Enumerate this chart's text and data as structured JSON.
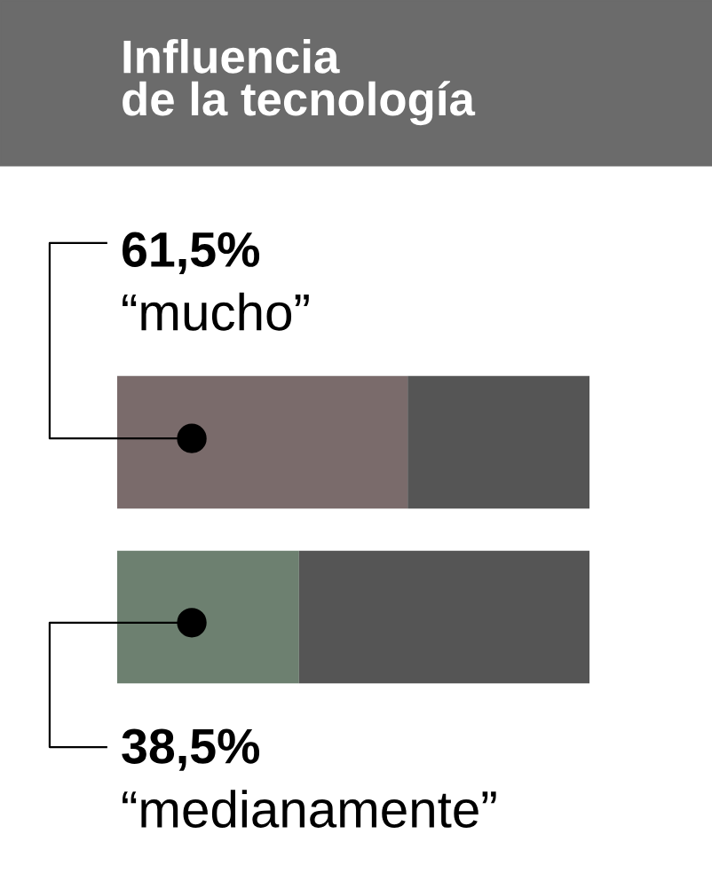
{
  "chart_data": {
    "type": "bar",
    "orientation": "horizontal",
    "stacked": true,
    "title": "Influencia\nde la tecnología",
    "categories": [
      null,
      null
    ],
    "series": [
      {
        "colors": [
          "#7a6b6b",
          "#6d8070"
        ],
        "values": [
          61.5,
          38.5
        ],
        "value_labels": [
          "61,5%",
          "38,5%"
        ]
      },
      {
        "color": "#555555",
        "values": [
          38.5,
          61.5
        ]
      }
    ],
    "annotations": [
      "“mucho”",
      "“medianamente”"
    ]
  }
}
